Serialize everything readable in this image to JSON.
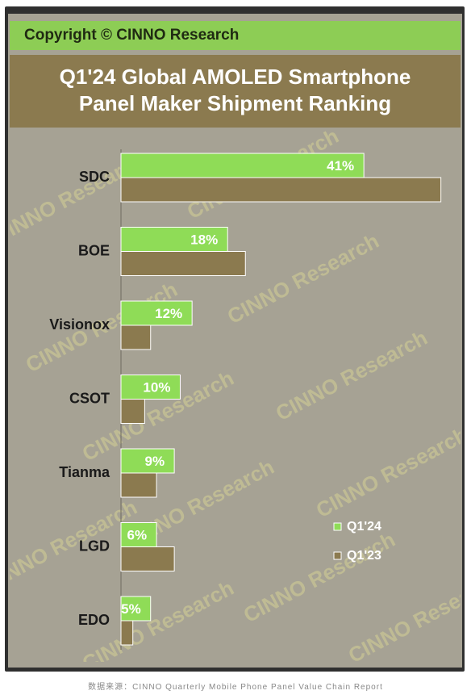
{
  "header": {
    "copyright": "Copyright © CINNO Research",
    "title_line1": "Q1'24 Global AMOLED Smartphone",
    "title_line2": "Panel Maker Shipment Ranking"
  },
  "watermark": "CINNO Research",
  "footer": {
    "source": "数据来源：CINNO Quarterly Mobile Phone Panel Value Chain Report"
  },
  "colors": {
    "q124": "#8fdc57",
    "q123": "#8b7a4f",
    "label": "#1a1a1a",
    "value_label": "#ffffff"
  },
  "chart_data": {
    "type": "bar",
    "orientation": "horizontal",
    "categories": [
      "SDC",
      "BOE",
      "Visionox",
      "CSOT",
      "Tianma",
      "LGD",
      "EDO"
    ],
    "series": [
      {
        "name": "Q1'24",
        "values": [
          41,
          18,
          12,
          10,
          9,
          6,
          5
        ],
        "labels": [
          "41%",
          "18%",
          "12%",
          "10%",
          "9%",
          "6%",
          "5%"
        ]
      },
      {
        "name": "Q1'23",
        "values": [
          54,
          21,
          5,
          4,
          6,
          9,
          2
        ]
      }
    ],
    "xlim": [
      0,
      55
    ],
    "legend_position": "bottom-right",
    "grid": false
  }
}
